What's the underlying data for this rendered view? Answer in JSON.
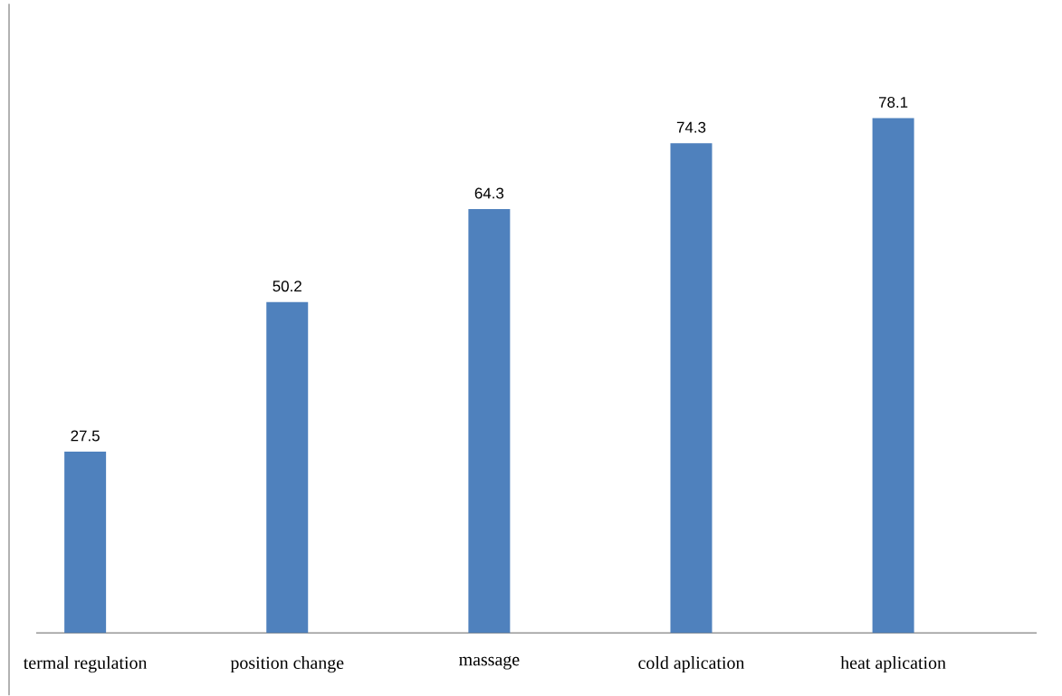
{
  "chart_data": {
    "type": "bar",
    "categories": [
      "termal regulation",
      "position change",
      "massage",
      "cold aplication",
      "heat aplication"
    ],
    "values": [
      27.5,
      50.2,
      64.3,
      74.3,
      78.1
    ],
    "color": "#4f81bd",
    "data_labels": true
  }
}
